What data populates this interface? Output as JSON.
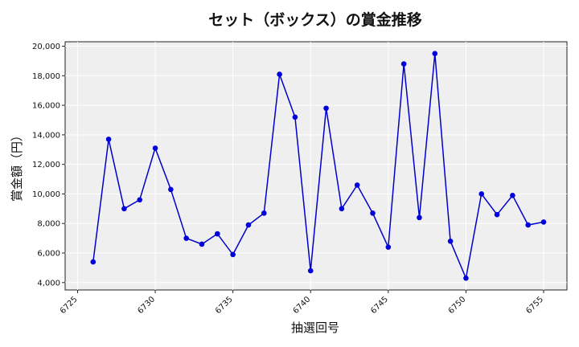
{
  "chart_data": {
    "type": "line",
    "title": "セット（ボックス）の賞金推移",
    "xlabel": "抽選回号",
    "ylabel": "賞金額（円）",
    "x": [
      6726,
      6727,
      6728,
      6729,
      6730,
      6731,
      6732,
      6733,
      6734,
      6735,
      6736,
      6737,
      6738,
      6739,
      6740,
      6741,
      6742,
      6743,
      6744,
      6745,
      6746,
      6747,
      6748,
      6749,
      6750,
      6751,
      6752,
      6753,
      6754,
      6755
    ],
    "series": [
      {
        "values": [
          5400,
          13700,
          9000,
          9600,
          13100,
          10300,
          7000,
          6600,
          7300,
          5900,
          7900,
          8700,
          18100,
          15200,
          4800,
          15800,
          9000,
          10600,
          8700,
          6400,
          18800,
          8400,
          19500,
          6800,
          4300,
          10000,
          8600,
          9900,
          7900,
          8100
        ],
        "color": "#0000cc"
      }
    ],
    "xticks": [
      6725,
      6730,
      6735,
      6740,
      6745,
      6750,
      6755
    ],
    "yticks": [
      4000,
      6000,
      8000,
      10000,
      12000,
      14000,
      16000,
      18000,
      20000
    ],
    "xlim": [
      6724.2,
      6756.5
    ],
    "ylim": [
      3500,
      20300
    ],
    "grid": true
  }
}
